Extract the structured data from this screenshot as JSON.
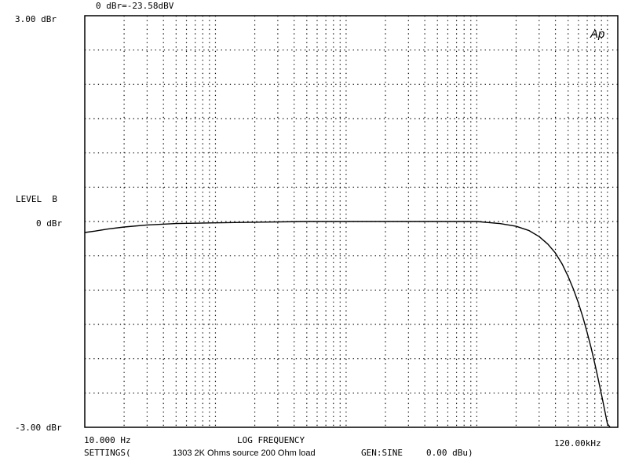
{
  "chart_data": {
    "type": "line",
    "header": "0 dBr=-23.58dBV",
    "logo": "Ap",
    "ylabel": "LEVEL  B",
    "xlabel": "LOG FREQUENCY",
    "y_ticks": [
      "3.00 dBr",
      "0 dBr",
      "-3.00 dBr"
    ],
    "x_tick_left": "10.000 Hz",
    "x_tick_right": "120.00kHz",
    "xlim": [
      10,
      120000
    ],
    "ylim": [
      -3,
      3
    ],
    "x_scale": "log",
    "y_divisions": 12,
    "grid": true,
    "series": [
      {
        "x": [
          10,
          12,
          15,
          20,
          30,
          50,
          100,
          200,
          500,
          1000,
          2000,
          5000,
          10000,
          15000,
          20000,
          25000,
          30000,
          35000,
          40000,
          45000,
          50000,
          55000,
          60000,
          65000,
          70000,
          75000,
          80000,
          85000,
          90000,
          95000,
          100000,
          105000
        ],
        "y": [
          -0.16,
          -0.14,
          -0.11,
          -0.08,
          -0.05,
          -0.03,
          -0.02,
          -0.01,
          0.0,
          0.0,
          0.0,
          0.0,
          0.0,
          -0.03,
          -0.07,
          -0.13,
          -0.22,
          -0.33,
          -0.46,
          -0.62,
          -0.8,
          -0.99,
          -1.19,
          -1.4,
          -1.62,
          -1.84,
          -2.07,
          -2.3,
          -2.52,
          -2.74,
          -2.95,
          -3.0
        ]
      }
    ]
  },
  "footer": {
    "settings": "SETTINGS(",
    "description": "1303 2K Ohms source 200 Ohm load",
    "gen": "GEN:SINE",
    "gen_level": "0.00 dBu)"
  }
}
